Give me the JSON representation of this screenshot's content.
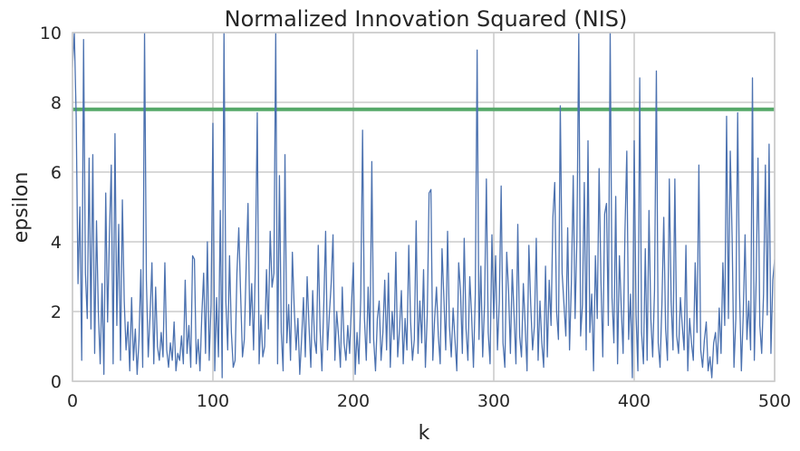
{
  "chart_data": {
    "type": "line",
    "title": "Normalized Innovation Squared (NIS)",
    "xlabel": "k",
    "ylabel": "epsilon",
    "xlim": [
      0,
      500
    ],
    "ylim": [
      0,
      10
    ],
    "xticks": [
      "0",
      "100",
      "200",
      "300",
      "400",
      "500"
    ],
    "yticks": [
      "0",
      "2",
      "4",
      "6",
      "8",
      "10"
    ],
    "grid": true,
    "threshold": 7.8,
    "colors": {
      "series": "#4c72b0",
      "threshold": "#55a868",
      "grid": "#cccccc",
      "spine": "#cccccc"
    },
    "series": [
      {
        "values": [
          9.0,
          10.0,
          7.6,
          2.8,
          5.0,
          0.6,
          9.8,
          3.1,
          1.8,
          6.4,
          1.5,
          6.5,
          0.8,
          4.6,
          2.0,
          0.5,
          2.8,
          0.2,
          5.4,
          1.7,
          4.2,
          6.2,
          0.5,
          7.1,
          1.6,
          4.5,
          0.6,
          5.2,
          2.3,
          0.9,
          1.7,
          0.3,
          2.4,
          0.6,
          1.5,
          0.2,
          1.2,
          3.2,
          0.4,
          10.0,
          2.9,
          0.7,
          1.9,
          3.4,
          0.5,
          2.7,
          1.0,
          0.6,
          1.4,
          0.7,
          3.4,
          0.9,
          0.4,
          1.1,
          0.6,
          1.7,
          0.3,
          0.8,
          0.6,
          1.3,
          0.5,
          2.9,
          0.8,
          1.6,
          0.4,
          3.6,
          3.5,
          0.5,
          1.2,
          0.3,
          1.9,
          3.1,
          0.8,
          4.0,
          0.6,
          2.2,
          7.4,
          0.3,
          2.4,
          0.7,
          4.9,
          0.1,
          10.0,
          2.3,
          0.9,
          3.6,
          1.4,
          0.4,
          0.6,
          3.1,
          4.4,
          2.5,
          0.7,
          1.2,
          3.3,
          5.1,
          1.6,
          2.8,
          0.9,
          3.4,
          7.7,
          0.5,
          1.9,
          0.7,
          1.0,
          3.2,
          1.5,
          4.3,
          2.7,
          3.1,
          10.0,
          0.5,
          5.9,
          1.4,
          0.3,
          6.5,
          1.1,
          2.2,
          0.6,
          3.7,
          2.1,
          0.9,
          1.8,
          0.2,
          1.2,
          2.4,
          0.7,
          3.0,
          1.6,
          0.4,
          2.6,
          1.2,
          0.8,
          3.9,
          1.5,
          0.3,
          2.2,
          4.3,
          0.9,
          1.9,
          2.8,
          4.2,
          0.6,
          2.0,
          1.3,
          0.4,
          2.7,
          1.1,
          0.6,
          1.6,
          0.8,
          2.2,
          3.4,
          0.2,
          1.4,
          0.5,
          2.4,
          7.2,
          1.8,
          0.6,
          2.7,
          1.1,
          6.3,
          1.2,
          0.3,
          1.8,
          2.3,
          0.6,
          1.4,
          2.9,
          0.9,
          3.1,
          0.4,
          2.0,
          1.2,
          3.7,
          0.7,
          1.5,
          2.6,
          0.5,
          1.8,
          0.9,
          3.9,
          1.7,
          0.6,
          1.2,
          4.6,
          0.8,
          2.3,
          1.1,
          3.2,
          0.4,
          1.9,
          5.4,
          5.5,
          0.6,
          1.8,
          2.7,
          1.3,
          0.5,
          3.8,
          2.4,
          0.9,
          4.3,
          1.6,
          0.7,
          2.1,
          1.2,
          0.3,
          3.4,
          2.6,
          0.8,
          4.1,
          1.5,
          0.6,
          3.0,
          1.9,
          0.4,
          2.5,
          9.5,
          1.2,
          3.3,
          0.7,
          2.2,
          5.8,
          1.4,
          0.5,
          4.2,
          1.8,
          3.6,
          0.9,
          2.3,
          5.6,
          1.1,
          0.4,
          3.7,
          2.6,
          0.8,
          3.2,
          1.9,
          0.5,
          4.5,
          1.3,
          0.7,
          2.8,
          1.6,
          0.3,
          3.9,
          2.2,
          0.9,
          1.6,
          4.1,
          0.6,
          2.3,
          1.1,
          0.4,
          3.3,
          0.7,
          2.9,
          1.6,
          4.7,
          5.7,
          2.0,
          1.2,
          7.9,
          3.1,
          2.2,
          1.3,
          4.4,
          0.9,
          2.8,
          5.9,
          1.8,
          4.1,
          10.0,
          1.3,
          2.2,
          5.7,
          0.9,
          6.9,
          1.4,
          2.5,
          0.3,
          3.6,
          1.8,
          6.1,
          2.9,
          0.7,
          4.8,
          5.1,
          1.6,
          10.0,
          2.4,
          1.1,
          5.3,
          0.5,
          3.6,
          2.1,
          0.8,
          4.3,
          6.6,
          1.2,
          2.5,
          0.1,
          6.9,
          1.9,
          0.3,
          8.7,
          1.4,
          0.5,
          3.8,
          0.6,
          4.9,
          1.8,
          0.7,
          2.6,
          8.9,
          1.1,
          0.4,
          2.2,
          4.7,
          1.5,
          0.6,
          5.8,
          2.3,
          0.9,
          5.8,
          1.3,
          0.8,
          2.4,
          1.6,
          0.9,
          3.9,
          0.3,
          1.8,
          1.1,
          0.6,
          3.4,
          1.4,
          6.2,
          0.9,
          0.4,
          1.2,
          1.7,
          0.3,
          0.7,
          0.1,
          1.1,
          1.4,
          0.5,
          2.1,
          0.8,
          3.4,
          1.6,
          7.6,
          1.8,
          6.6,
          4.1,
          0.4,
          1.8,
          7.7,
          2.6,
          0.3,
          1.9,
          4.2,
          1.2,
          2.3,
          0.9,
          8.7,
          0.6,
          2.9,
          6.4,
          1.6,
          0.8,
          2.5,
          6.2,
          1.9,
          6.8,
          0.8,
          2.9,
          3.5
        ]
      }
    ]
  }
}
